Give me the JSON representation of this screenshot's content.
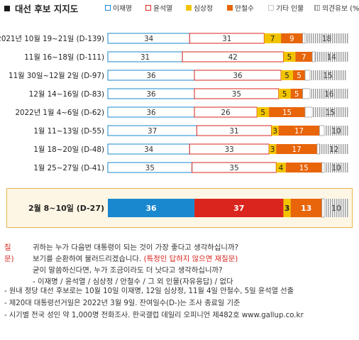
{
  "title": "대선 후보 지지도",
  "legend": [
    {
      "label": "이재명",
      "color": "#1a88cf",
      "style": "outline"
    },
    {
      "label": "윤석열",
      "color": "#d9251d",
      "style": "outline"
    },
    {
      "label": "심상정",
      "color": "#f2c400",
      "style": "solid"
    },
    {
      "label": "안철수",
      "color": "#e8650a",
      "style": "solid"
    },
    {
      "label": "기타 인물",
      "color": "#c8c8c8",
      "style": "outline"
    },
    {
      "label": "의견유보 (%)",
      "color": "#b0b0b0",
      "style": "hatch"
    }
  ],
  "chart_data": {
    "type": "bar",
    "orientation": "horizontal",
    "stacked": true,
    "categories": [
      "2021년 10월 19~21일 (D-139)",
      "11월 16~18일 (D-111)",
      "11월 30일~12월 2일 (D-97)",
      "12월 14~16일 (D-83)",
      "2022년 1월 4~6일 (D-62)",
      "1월 11~13일 (D-55)",
      "1월 18~20일 (D-48)",
      "1월 25~27일 (D-41)",
      "2월 8~10일 (D-27)"
    ],
    "series": [
      {
        "name": "이재명",
        "color": "#1a88cf",
        "values": [
          34,
          31,
          36,
          36,
          36,
          37,
          34,
          35,
          36
        ]
      },
      {
        "name": "윤석열",
        "color": "#d9251d",
        "values": [
          31,
          42,
          36,
          35,
          26,
          31,
          33,
          35,
          37
        ]
      },
      {
        "name": "심상정",
        "color": "#f2c400",
        "values": [
          7,
          5,
          5,
          5,
          5,
          3,
          3,
          4,
          3
        ]
      },
      {
        "name": "안철수",
        "color": "#e8650a",
        "values": [
          9,
          7,
          5,
          5,
          15,
          17,
          17,
          15,
          13
        ]
      },
      {
        "name": "기타 인물",
        "color": "#c8c8c8",
        "values": [
          1,
          1,
          2,
          3,
          3,
          2,
          1,
          1,
          1
        ]
      },
      {
        "name": "의견유보 (%)",
        "color": "#b0b0b0",
        "values": [
          18,
          14,
          15,
          16,
          15,
          10,
          12,
          10,
          10
        ]
      }
    ],
    "highlighted_category": "2월 8~10일 (D-27)",
    "xlim": [
      0,
      100
    ]
  },
  "question": {
    "label": "질문)",
    "line1": "귀하는 누가 다음번 대통령이 되는 것이 가장 좋다고 생각하십니까?",
    "line2_a": "보기를 순환하여 불러드리겠습니다. ",
    "line2_b": "(특정인 답하지 않으면 재질문)",
    "line3": "굳이 말씀하신다면, 누가 조금이라도 더 낫다고 생각하십니까?",
    "line4": "- 이재명 / 윤석열 / 심상정 / 안철수 / 그 외 인물(자유응답) / 없다"
  },
  "notes": [
    "- 원내 정당 대선 후보로는 10월 10일 이재명, 12일 심상정, 11월 4일 안철수, 5일 윤석열 선출",
    "- 제20대 대통령선거일은 2022년 3월 9일. 잔여일수(D-)는 조사 종료일 기준",
    "- 시기별 전국 성인 약 1,000명 전화조사. 한국갤럽 데일리 오피니언 제482호 www.gallup.co.kr"
  ]
}
